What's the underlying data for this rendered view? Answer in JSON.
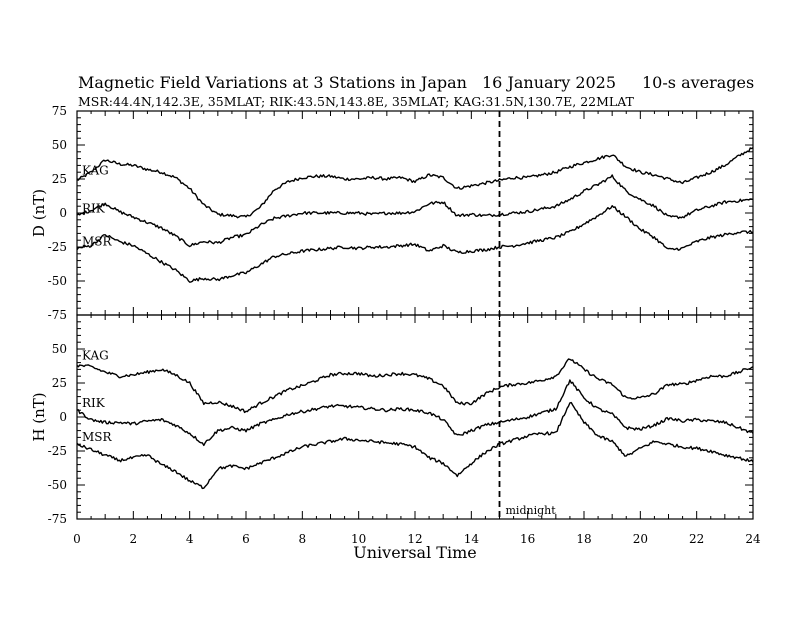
{
  "page": {
    "title": "Magnetic Field Variations at 3 Stations in Japan",
    "date": "16 January  2025",
    "averaging": "10-s averages",
    "subtitle": "MSR:44.4N,142.3E, 35MLAT;  RIK:43.5N,143.8E, 35MLAT;  KAG:31.5N,130.7E, 22MLAT"
  },
  "chart_data": [
    {
      "type": "line",
      "ylabel": "D (nT)",
      "ylim": [
        -75,
        75
      ],
      "yticks": [
        75,
        50,
        25,
        0,
        -25,
        -50,
        -75
      ],
      "xlim": [
        0,
        24
      ],
      "grid": false,
      "series": [
        {
          "name": "KAG",
          "x": [
            0,
            0.5,
            1,
            1.5,
            2,
            2.5,
            3,
            3.5,
            4,
            4.5,
            5,
            5.5,
            6,
            6.5,
            7,
            7.5,
            8,
            8.5,
            9,
            9.5,
            10,
            10.5,
            11,
            11.5,
            12,
            12.5,
            13,
            13.5,
            14,
            14.5,
            15,
            15.5,
            16,
            16.5,
            17,
            17.5,
            18,
            18.5,
            19,
            19.5,
            20,
            20.5,
            21,
            21.5,
            22,
            22.5,
            23,
            23.5,
            24
          ],
          "values": [
            24,
            30,
            39,
            36,
            35,
            32,
            30,
            26,
            18,
            6,
            -1,
            -2,
            -3,
            4,
            17,
            23,
            26,
            27,
            27,
            25,
            25,
            26,
            25,
            26,
            23,
            28,
            26,
            18,
            20,
            22,
            24,
            26,
            26,
            28,
            30,
            34,
            37,
            40,
            43,
            34,
            30,
            28,
            25,
            22,
            26,
            30,
            35,
            42,
            48
          ]
        },
        {
          "name": "RIK",
          "x": [
            0,
            0.5,
            1,
            1.5,
            2,
            2.5,
            3,
            3.5,
            4,
            4.5,
            5,
            5.5,
            6,
            6.5,
            7,
            7.5,
            8,
            8.5,
            9,
            9.5,
            10,
            10.5,
            11,
            11.5,
            12,
            12.5,
            13,
            13.5,
            14,
            14.5,
            15,
            15.5,
            16,
            16.5,
            17,
            17.5,
            18,
            18.5,
            19,
            19.5,
            20,
            20.5,
            21,
            21.5,
            22,
            22.5,
            23,
            23.5,
            24
          ],
          "values": [
            -2,
            2,
            7,
            1,
            -3,
            -7,
            -11,
            -17,
            -24,
            -21,
            -22,
            -18,
            -16,
            -9,
            -4,
            -2,
            0,
            0,
            0,
            0,
            0,
            -1,
            0,
            0,
            1,
            7,
            8,
            -2,
            -1,
            -2,
            -1,
            0,
            1,
            3,
            5,
            10,
            16,
            21,
            27,
            16,
            10,
            5,
            -3,
            -3,
            2,
            5,
            8,
            9,
            10
          ]
        },
        {
          "name": "MSR",
          "x": [
            0,
            0.5,
            1,
            1.5,
            2,
            2.5,
            3,
            3.5,
            4,
            4.5,
            5,
            5.5,
            6,
            6.5,
            7,
            7.5,
            8,
            8.5,
            9,
            9.5,
            10,
            10.5,
            11,
            11.5,
            12,
            12.5,
            13,
            13.5,
            14,
            14.5,
            15,
            15.5,
            16,
            16.5,
            17,
            17.5,
            18,
            18.5,
            19,
            19.5,
            20,
            20.5,
            21,
            21.5,
            22,
            22.5,
            23,
            23.5,
            24
          ],
          "values": [
            -26,
            -24,
            -16,
            -21,
            -24,
            -30,
            -36,
            -42,
            -50,
            -48,
            -49,
            -46,
            -44,
            -38,
            -32,
            -30,
            -28,
            -27,
            -26,
            -25,
            -26,
            -25,
            -25,
            -24,
            -23,
            -28,
            -24,
            -29,
            -28,
            -27,
            -25,
            -24,
            -22,
            -20,
            -18,
            -14,
            -8,
            -2,
            5,
            -3,
            -12,
            -18,
            -27,
            -26,
            -21,
            -18,
            -16,
            -14,
            -14
          ]
        }
      ]
    },
    {
      "type": "line",
      "ylabel": "H (nT)",
      "xlabel": "Universal Time",
      "ylim": [
        -75,
        75
      ],
      "yticks": [
        75,
        50,
        25,
        0,
        -25,
        -50,
        -75
      ],
      "xlim": [
        0,
        24
      ],
      "xticks": [
        0,
        2,
        4,
        6,
        8,
        10,
        12,
        14,
        16,
        18,
        20,
        22,
        24
      ],
      "grid": false,
      "series": [
        {
          "name": "KAG",
          "x": [
            0,
            0.5,
            1,
            1.5,
            2,
            2.5,
            3,
            3.5,
            4,
            4.5,
            5,
            5.5,
            6,
            6.5,
            7,
            7.5,
            8,
            8.5,
            9,
            9.5,
            10,
            10.5,
            11,
            11.5,
            12,
            12.5,
            13,
            13.5,
            14,
            14.5,
            15,
            15.5,
            16,
            16.5,
            17,
            17.5,
            18,
            18.5,
            19,
            19.5,
            20,
            20.5,
            21,
            21.5,
            22,
            22.5,
            23,
            23.5,
            24
          ],
          "values": [
            38,
            37,
            33,
            30,
            31,
            33,
            35,
            31,
            25,
            10,
            11,
            8,
            4,
            10,
            15,
            20,
            23,
            27,
            31,
            32,
            32,
            30,
            31,
            32,
            31,
            28,
            23,
            10,
            10,
            17,
            22,
            24,
            25,
            27,
            30,
            43,
            35,
            28,
            24,
            14,
            14,
            17,
            24,
            24,
            27,
            30,
            30,
            33,
            37
          ]
        },
        {
          "name": "RIK",
          "x": [
            0,
            0.5,
            1,
            1.5,
            2,
            2.5,
            3,
            3.5,
            4,
            4.5,
            5,
            5.5,
            6,
            6.5,
            7,
            7.5,
            8,
            8.5,
            9,
            9.5,
            10,
            10.5,
            11,
            11.5,
            12,
            12.5,
            13,
            13.5,
            14,
            14.5,
            15,
            15.5,
            16,
            16.5,
            17,
            17.5,
            18,
            18.5,
            19,
            19.5,
            20,
            20.5,
            21,
            21.5,
            22,
            22.5,
            23,
            23.5,
            24
          ],
          "values": [
            5,
            -2,
            -4,
            -4,
            -5,
            -3,
            -2,
            -6,
            -12,
            -20,
            -10,
            -8,
            -10,
            -5,
            -2,
            2,
            4,
            6,
            8,
            8,
            7,
            6,
            5,
            6,
            5,
            3,
            -2,
            -14,
            -10,
            -6,
            -4,
            -2,
            0,
            3,
            6,
            27,
            14,
            6,
            2,
            -8,
            -9,
            -6,
            -1,
            -3,
            -2,
            -3,
            -4,
            -8,
            -12
          ]
        },
        {
          "name": "MSR",
          "x": [
            0,
            0.5,
            1,
            1.5,
            2,
            2.5,
            3,
            3.5,
            4,
            4.5,
            5,
            5.5,
            6,
            6.5,
            7,
            7.5,
            8,
            8.5,
            9,
            9.5,
            10,
            10.5,
            11,
            11.5,
            12,
            12.5,
            13,
            13.5,
            14,
            14.5,
            15,
            15.5,
            16,
            16.5,
            17,
            17.5,
            18,
            18.5,
            19,
            19.5,
            20,
            20.5,
            21,
            21.5,
            22,
            22.5,
            23,
            23.5,
            24
          ],
          "values": [
            -20,
            -24,
            -28,
            -32,
            -30,
            -28,
            -35,
            -40,
            -47,
            -52,
            -38,
            -36,
            -38,
            -34,
            -30,
            -26,
            -22,
            -20,
            -18,
            -16,
            -17,
            -18,
            -19,
            -20,
            -22,
            -30,
            -34,
            -43,
            -34,
            -26,
            -20,
            -17,
            -14,
            -12,
            -12,
            11,
            -4,
            -14,
            -18,
            -29,
            -23,
            -18,
            -20,
            -22,
            -23,
            -25,
            -28,
            -30,
            -33
          ]
        }
      ]
    }
  ],
  "annotation": {
    "text": "midnight",
    "x": 15
  }
}
